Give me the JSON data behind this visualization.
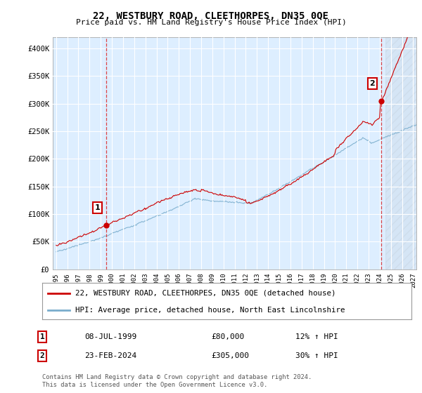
{
  "title": "22, WESTBURY ROAD, CLEETHORPES, DN35 0QE",
  "subtitle": "Price paid vs. HM Land Registry's House Price Index (HPI)",
  "ylabel_ticks": [
    "£0",
    "£50K",
    "£100K",
    "£150K",
    "£200K",
    "£250K",
    "£300K",
    "£350K",
    "£400K"
  ],
  "ytick_vals": [
    0,
    50000,
    100000,
    150000,
    200000,
    250000,
    300000,
    350000,
    400000
  ],
  "ylim": [
    0,
    420000
  ],
  "xlim_start": 1994.7,
  "xlim_end": 2027.3,
  "legend_line1": "22, WESTBURY ROAD, CLEETHORPES, DN35 0QE (detached house)",
  "legend_line2": "HPI: Average price, detached house, North East Lincolnshire",
  "marker1_date": "08-JUL-1999",
  "marker1_price": "£80,000",
  "marker1_hpi": "12% ↑ HPI",
  "marker1_x": 1999.52,
  "marker1_y": 80000,
  "marker2_date": "23-FEB-2024",
  "marker2_price": "£305,000",
  "marker2_hpi": "30% ↑ HPI",
  "marker2_x": 2024.14,
  "marker2_y": 305000,
  "red_color": "#cc0000",
  "blue_color": "#7aadcc",
  "plot_bg_color": "#ddeeff",
  "vline_color": "#dd3333",
  "background_color": "#ffffff",
  "grid_color": "#ffffff",
  "footer": "Contains HM Land Registry data © Crown copyright and database right 2024.\nThis data is licensed under the Open Government Licence v3.0."
}
